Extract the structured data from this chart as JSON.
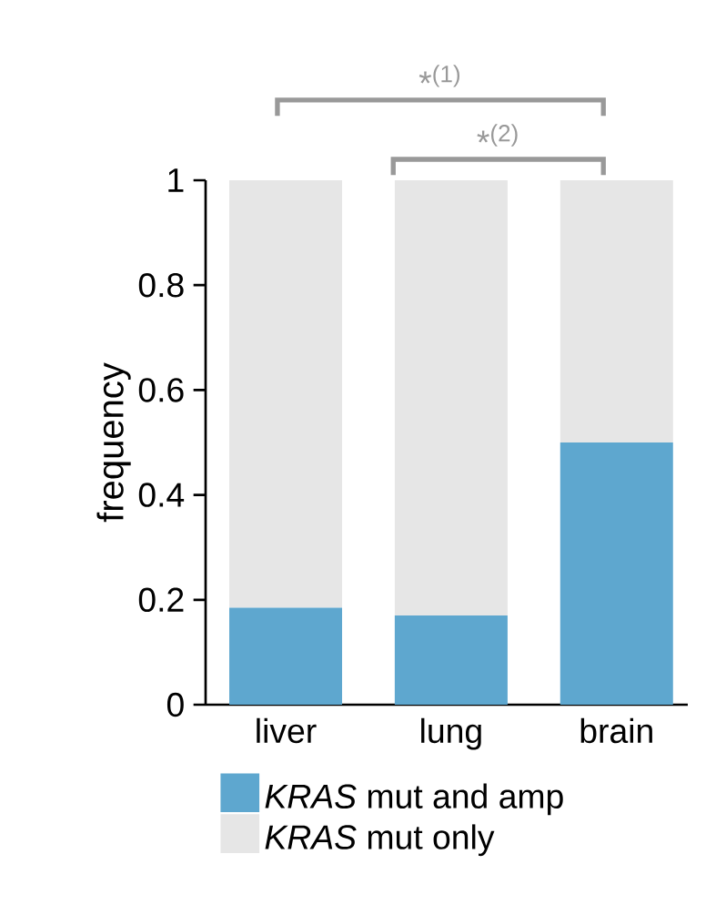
{
  "chart_data": {
    "type": "bar",
    "stacked": true,
    "ylabel": "frequency",
    "categories": [
      "liver",
      "lung",
      "brain"
    ],
    "series": [
      {
        "name": "*KRAS* mut and amp",
        "color": "#5ea7cf",
        "values": [
          0.185,
          0.17,
          0.5
        ]
      },
      {
        "name": "*KRAS* mut only",
        "color": "#e6e6e6",
        "values": [
          0.815,
          0.83,
          0.5
        ]
      }
    ],
    "ylim": [
      0,
      1
    ],
    "yticks": [
      0,
      0.2,
      0.4,
      0.6,
      0.8,
      1
    ],
    "legend": "bottom",
    "annotations": [
      "*$^{(1)}$",
      "*$^{(2)}$"
    ]
  }
}
